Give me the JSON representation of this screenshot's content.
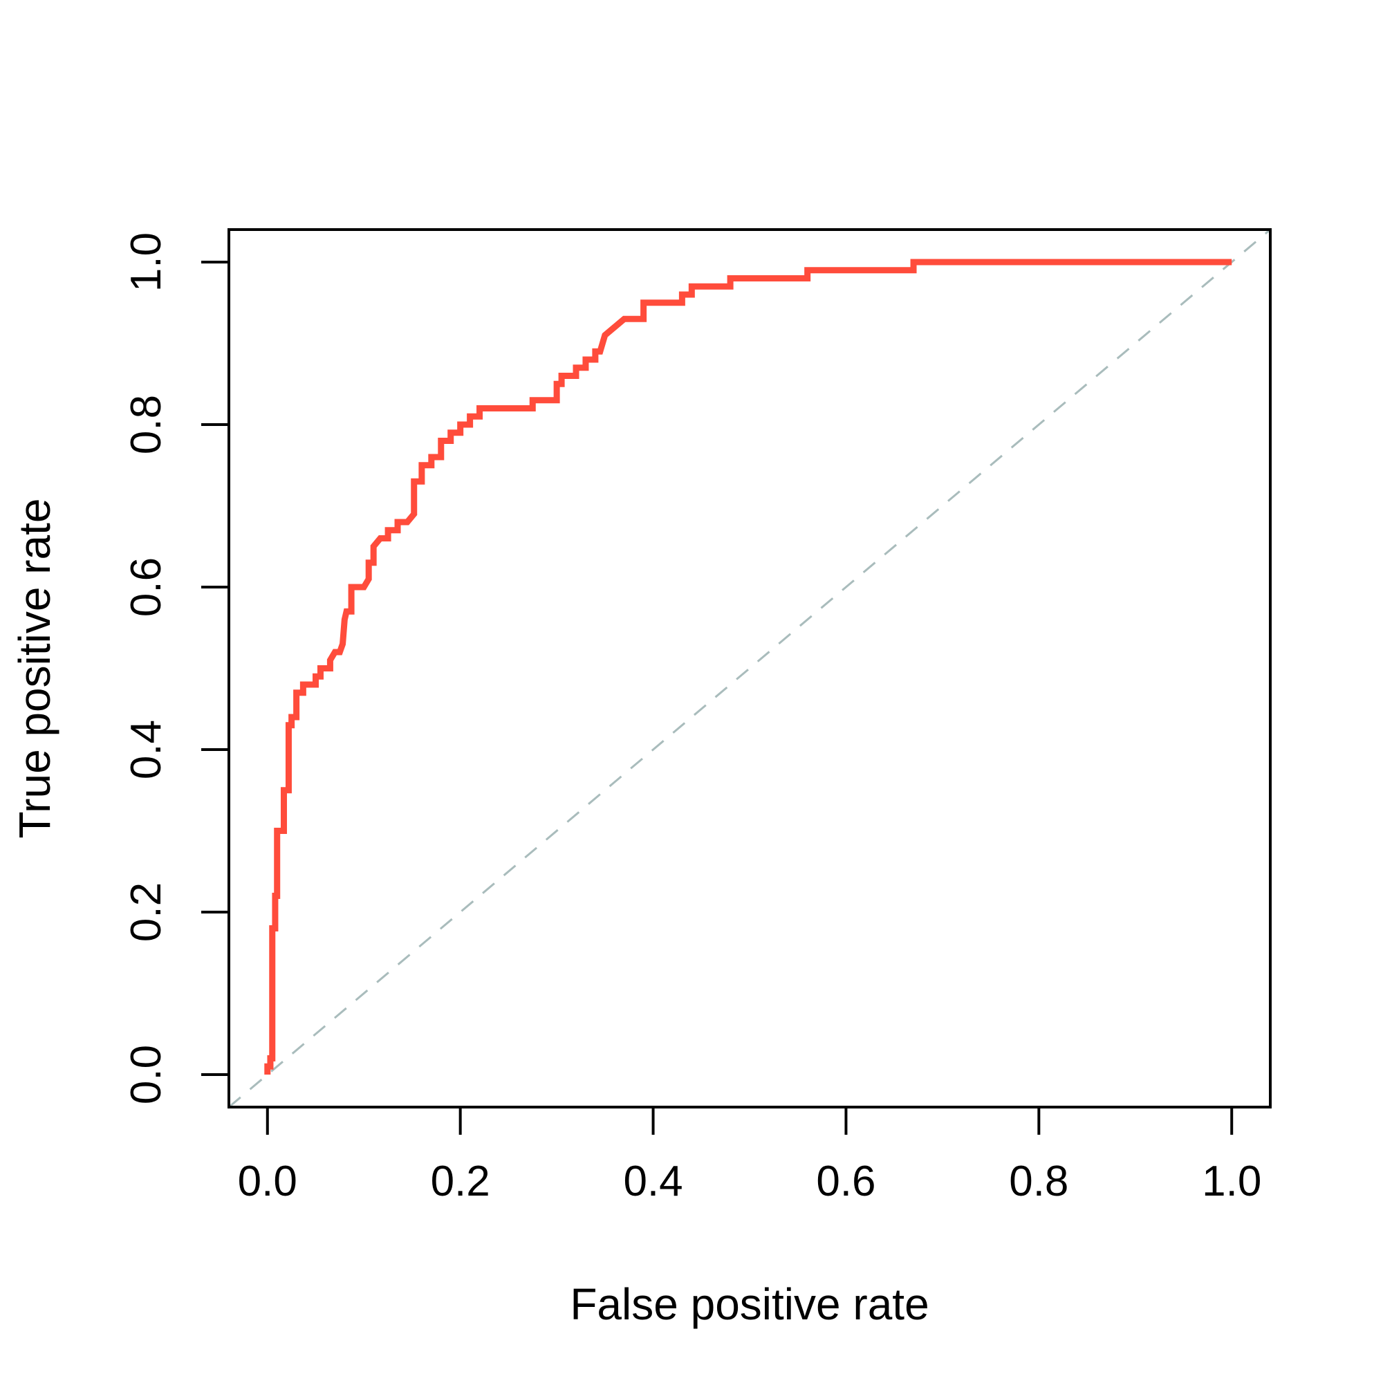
{
  "chart_data": {
    "type": "line",
    "title": "",
    "xlabel": "False positive rate",
    "ylabel": "True positive rate",
    "xlim": [
      -0.04,
      1.04
    ],
    "ylim": [
      -0.04,
      1.04
    ],
    "x_ticks": [
      "0.0",
      "0.2",
      "0.4",
      "0.6",
      "0.8",
      "1.0"
    ],
    "y_ticks": [
      "0.0",
      "0.2",
      "0.4",
      "0.6",
      "0.8",
      "1.0"
    ],
    "grid": false,
    "legend": "none",
    "series": [
      {
        "color": "#ff4c3b",
        "x": [
          0.0,
          0.0,
          0.003,
          0.003,
          0.005,
          0.005,
          0.008,
          0.008,
          0.01,
          0.01,
          0.017,
          0.017,
          0.022,
          0.022,
          0.025,
          0.025,
          0.03,
          0.03,
          0.037,
          0.037,
          0.05,
          0.05,
          0.055,
          0.055,
          0.065,
          0.065,
          0.07,
          0.075,
          0.078,
          0.08,
          0.082,
          0.087,
          0.087,
          0.095,
          0.1,
          0.105,
          0.105,
          0.11,
          0.11,
          0.117,
          0.125,
          0.125,
          0.135,
          0.135,
          0.145,
          0.152,
          0.152,
          0.16,
          0.16,
          0.17,
          0.17,
          0.18,
          0.18,
          0.19,
          0.19,
          0.2,
          0.2,
          0.21,
          0.21,
          0.22,
          0.22,
          0.275,
          0.275,
          0.29,
          0.3,
          0.3,
          0.305,
          0.305,
          0.32,
          0.32,
          0.33,
          0.33,
          0.34,
          0.34,
          0.345,
          0.35,
          0.36,
          0.37,
          0.39,
          0.39,
          0.43,
          0.43,
          0.44,
          0.44,
          0.48,
          0.48,
          0.56,
          0.56,
          0.67,
          0.67,
          1.0
        ],
        "y": [
          0.0,
          0.01,
          0.01,
          0.02,
          0.02,
          0.18,
          0.18,
          0.22,
          0.22,
          0.3,
          0.3,
          0.35,
          0.35,
          0.43,
          0.43,
          0.44,
          0.44,
          0.47,
          0.47,
          0.48,
          0.48,
          0.49,
          0.49,
          0.5,
          0.5,
          0.51,
          0.52,
          0.52,
          0.53,
          0.56,
          0.57,
          0.57,
          0.6,
          0.6,
          0.6,
          0.61,
          0.63,
          0.63,
          0.65,
          0.66,
          0.66,
          0.67,
          0.67,
          0.68,
          0.68,
          0.69,
          0.73,
          0.73,
          0.75,
          0.75,
          0.76,
          0.76,
          0.78,
          0.78,
          0.79,
          0.79,
          0.8,
          0.8,
          0.81,
          0.81,
          0.82,
          0.82,
          0.83,
          0.83,
          0.83,
          0.85,
          0.85,
          0.86,
          0.86,
          0.87,
          0.87,
          0.88,
          0.88,
          0.89,
          0.89,
          0.91,
          0.92,
          0.93,
          0.93,
          0.95,
          0.95,
          0.96,
          0.96,
          0.97,
          0.97,
          0.98,
          0.98,
          0.99,
          0.99,
          1.0,
          1.0
        ]
      },
      {
        "color": "#a9bcbc",
        "line_style": "dashed",
        "x": [
          -0.04,
          1.04
        ],
        "y": [
          -0.04,
          1.04
        ]
      }
    ]
  }
}
